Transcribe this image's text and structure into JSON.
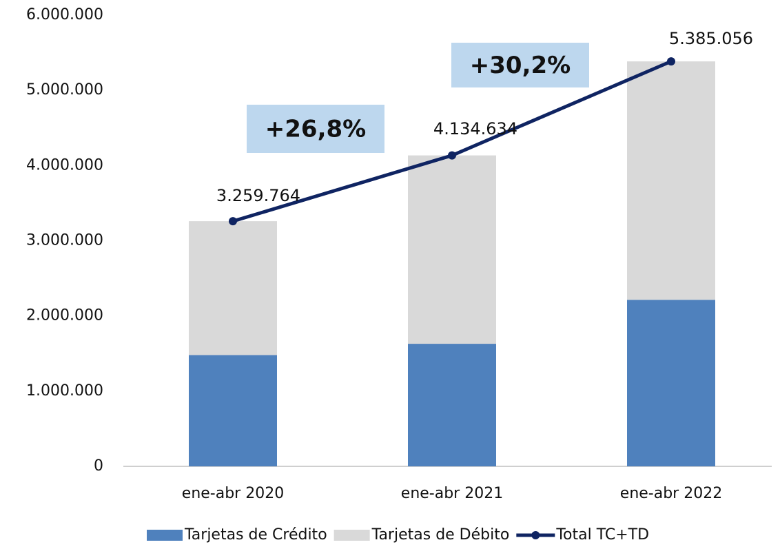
{
  "chart_data": {
    "type": "bar",
    "stacked": true,
    "categories": [
      "ene-abr 2020",
      "ene-abr 2021",
      "ene-abr 2022"
    ],
    "series": [
      {
        "name": "Tarjetas de Crédito",
        "type": "bar",
        "color": "#4f81bd",
        "values": [
          1480000,
          1630000,
          2215000
        ]
      },
      {
        "name": "Tarjetas de Débito",
        "type": "bar",
        "color": "#d9d9d9",
        "values": [
          1780000,
          2505000,
          3170000
        ]
      },
      {
        "name": "Total TC+TD",
        "type": "line",
        "color": "#0f2462",
        "values": [
          3259764,
          4134634,
          5385056
        ],
        "value_labels": [
          "3.259.764",
          "4.134.634",
          "5.385.056"
        ]
      }
    ],
    "ylim": [
      0,
      6000000
    ],
    "yticks": [
      0,
      {
        "value": 1000000,
        "label": "1.000.000"
      },
      {
        "value": 2000000,
        "label": "2.000.000"
      },
      {
        "value": 3000000,
        "label": "3.000.000"
      },
      {
        "value": 4000000,
        "label": "4.000.000"
      },
      {
        "value": 5000000,
        "label": "5.000.000"
      },
      {
        "value": 6000000,
        "label": "6.000.000"
      }
    ],
    "grid": false,
    "legend": "bottom",
    "annotations": [
      "+26,8%",
      "+30,2%"
    ]
  }
}
